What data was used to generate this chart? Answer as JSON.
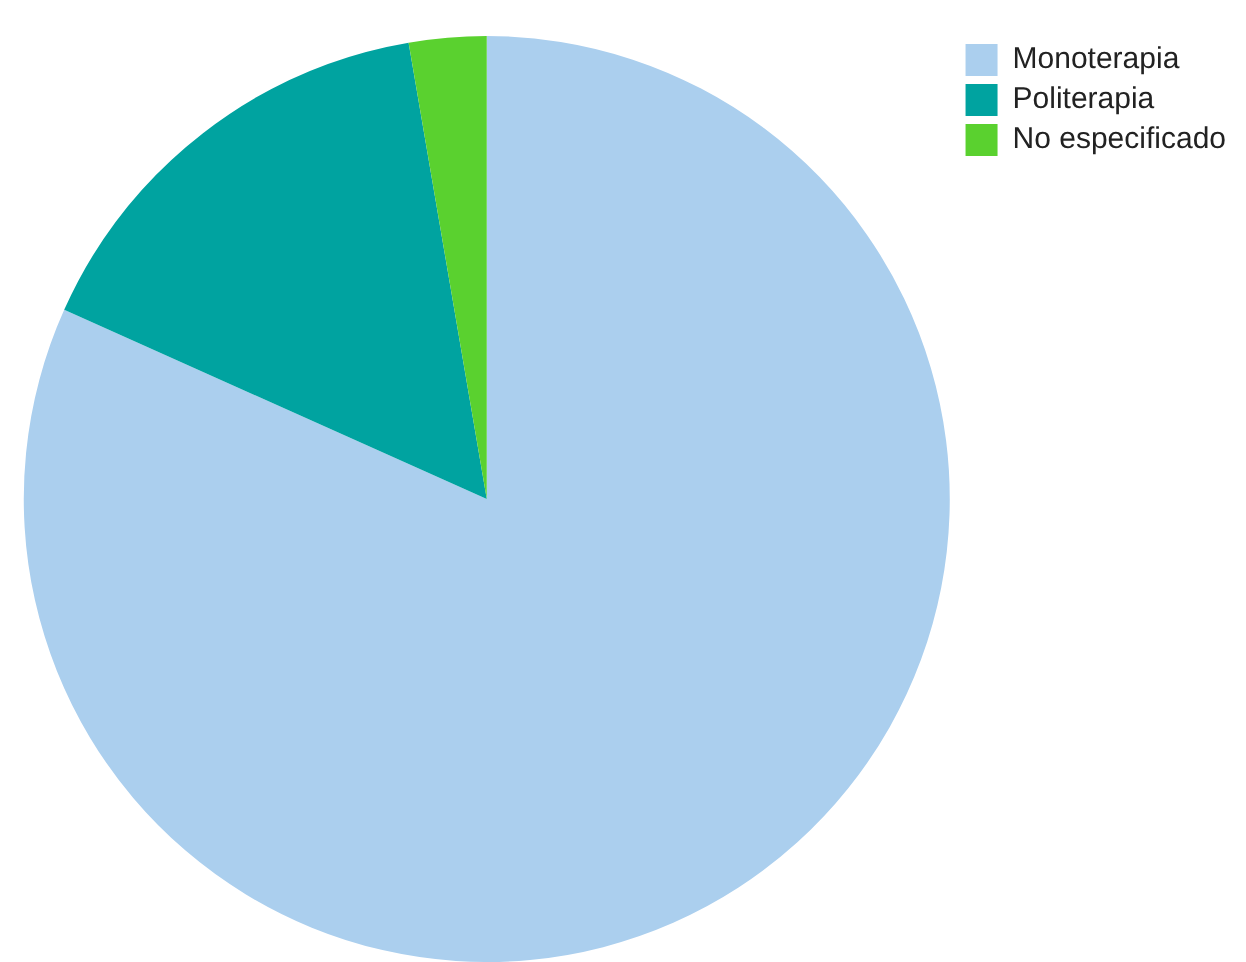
{
  "chart_data": {
    "type": "pie",
    "categories": [
      "Monoterapia",
      "Politerapia",
      "No especificado"
    ],
    "values": [
      81.7,
      15.6,
      2.7
    ],
    "colors": [
      "#abcfee",
      "#00a3a0",
      "#5ad12f"
    ],
    "legend": "top right"
  }
}
